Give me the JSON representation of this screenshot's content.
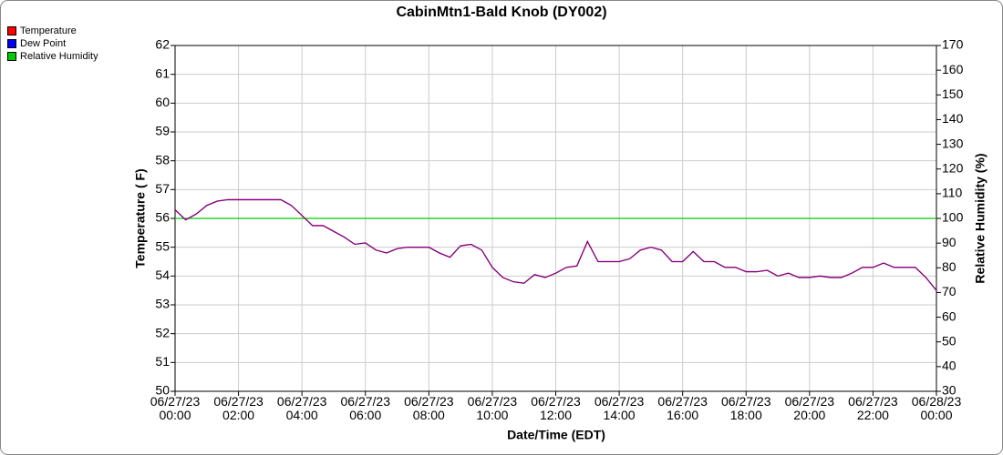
{
  "chart_data": {
    "type": "line",
    "title": "CabinMtn1-Bald Knob (DY002)",
    "x_label": "Date/Time (EDT)",
    "y_label": "Temperature ( F)",
    "y2_label": "Relative Humidity (%)",
    "x": [
      "06/27/23 00:00",
      "06/27/23 00:20",
      "06/27/23 00:40",
      "06/27/23 01:00",
      "06/27/23 01:20",
      "06/27/23 01:40",
      "06/27/23 02:00",
      "06/27/23 02:20",
      "06/27/23 02:40",
      "06/27/23 03:00",
      "06/27/23 03:20",
      "06/27/23 03:40",
      "06/27/23 04:00",
      "06/27/23 04:20",
      "06/27/23 04:40",
      "06/27/23 05:00",
      "06/27/23 05:20",
      "06/27/23 05:40",
      "06/27/23 06:00",
      "06/27/23 06:20",
      "06/27/23 06:40",
      "06/27/23 07:00",
      "06/27/23 07:20",
      "06/27/23 07:40",
      "06/27/23 08:00",
      "06/27/23 08:20",
      "06/27/23 08:40",
      "06/27/23 09:00",
      "06/27/23 09:20",
      "06/27/23 09:40",
      "06/27/23 10:00",
      "06/27/23 10:20",
      "06/27/23 10:40",
      "06/27/23 11:00",
      "06/27/23 11:20",
      "06/27/23 11:40",
      "06/27/23 12:00",
      "06/27/23 12:20",
      "06/27/23 12:40",
      "06/27/23 13:00",
      "06/27/23 13:20",
      "06/27/23 13:40",
      "06/27/23 14:00",
      "06/27/23 14:20",
      "06/27/23 14:40",
      "06/27/23 15:00",
      "06/27/23 15:20",
      "06/27/23 15:40",
      "06/27/23 16:00",
      "06/27/23 16:20",
      "06/27/23 16:40",
      "06/27/23 17:00",
      "06/27/23 17:20",
      "06/27/23 17:40",
      "06/27/23 18:00",
      "06/27/23 18:20",
      "06/27/23 18:40",
      "06/27/23 19:00",
      "06/27/23 19:20",
      "06/27/23 19:40",
      "06/27/23 20:00",
      "06/27/23 20:20",
      "06/27/23 20:40",
      "06/27/23 21:00",
      "06/27/23 21:20",
      "06/27/23 21:40",
      "06/27/23 22:00",
      "06/27/23 22:20",
      "06/27/23 22:40",
      "06/27/23 23:00",
      "06/27/23 23:20",
      "06/27/23 23:40",
      "06/28/23 00:00"
    ],
    "series": [
      {
        "name": "Temperature",
        "color": "#ff0000",
        "values": [
          56.3,
          55.95,
          56.15,
          56.45,
          56.6,
          56.65,
          56.65,
          56.65,
          56.65,
          56.65,
          56.65,
          56.45,
          56.1,
          55.75,
          55.75,
          55.55,
          55.35,
          55.1,
          55.15,
          54.9,
          54.8,
          54.95,
          55.0,
          55.0,
          55.0,
          54.8,
          54.65,
          55.05,
          55.1,
          54.9,
          54.3,
          53.95,
          53.8,
          53.75,
          54.05,
          53.95,
          54.1,
          54.3,
          54.35,
          55.2,
          54.5,
          54.5,
          54.5,
          54.6,
          54.9,
          55.0,
          54.9,
          54.5,
          54.5,
          54.85,
          54.5,
          54.5,
          54.3,
          54.3,
          54.15,
          54.15,
          54.2,
          54.0,
          54.1,
          53.95,
          53.95,
          54.0,
          53.95,
          53.95,
          54.1,
          54.3,
          54.3,
          54.45,
          54.3,
          54.3,
          54.3,
          53.95,
          53.5
        ]
      },
      {
        "name": "Dew Point",
        "color": "#0000ff",
        "values": [
          56.3,
          55.95,
          56.15,
          56.45,
          56.6,
          56.65,
          56.65,
          56.65,
          56.65,
          56.65,
          56.65,
          56.45,
          56.1,
          55.75,
          55.75,
          55.55,
          55.35,
          55.1,
          55.15,
          54.9,
          54.8,
          54.95,
          55.0,
          55.0,
          55.0,
          54.8,
          54.65,
          55.05,
          55.1,
          54.9,
          54.3,
          53.95,
          53.8,
          53.75,
          54.05,
          53.95,
          54.1,
          54.3,
          54.35,
          55.2,
          54.5,
          54.5,
          54.5,
          54.6,
          54.9,
          55.0,
          54.9,
          54.5,
          54.5,
          54.85,
          54.5,
          54.5,
          54.3,
          54.3,
          54.15,
          54.15,
          54.2,
          54.0,
          54.1,
          53.95,
          53.95,
          54.0,
          53.95,
          53.95,
          54.1,
          54.3,
          54.3,
          54.45,
          54.3,
          54.3,
          54.3,
          53.95,
          53.5
        ]
      },
      {
        "name": "Relative Humidity",
        "color": "#00cc00",
        "axis": "y2",
        "values": [
          100,
          100,
          100,
          100,
          100,
          100,
          100,
          100,
          100,
          100,
          100,
          100,
          100,
          100,
          100,
          100,
          100,
          100,
          100,
          100,
          100,
          100,
          100,
          100,
          100,
          100,
          100,
          100,
          100,
          100,
          100,
          100,
          100,
          100,
          100,
          100,
          100,
          100,
          100,
          100,
          100,
          100,
          100,
          100,
          100,
          100,
          100,
          100,
          100,
          100,
          100,
          100,
          100,
          100,
          100,
          100,
          100,
          100,
          100,
          100,
          100,
          100,
          100,
          100,
          100,
          100,
          100,
          100,
          100,
          100,
          100,
          100,
          100
        ]
      }
    ],
    "xlim": [
      "06/27/23 00:00",
      "06/28/23 00:00"
    ],
    "xticks": [
      "06/27/23 00:00",
      "06/27/23 02:00",
      "06/27/23 04:00",
      "06/27/23 06:00",
      "06/27/23 08:00",
      "06/27/23 10:00",
      "06/27/23 12:00",
      "06/27/23 14:00",
      "06/27/23 16:00",
      "06/27/23 18:00",
      "06/27/23 20:00",
      "06/27/23 22:00",
      "06/28/23 00:00"
    ],
    "ylim": [
      50,
      62
    ],
    "yticks": [
      50,
      51,
      52,
      53,
      54,
      55,
      56,
      57,
      58,
      59,
      60,
      61,
      62
    ],
    "y2lim": [
      30,
      170
    ],
    "y2ticks": [
      30,
      40,
      50,
      60,
      70,
      80,
      90,
      100,
      110,
      120,
      130,
      140,
      150,
      160,
      170
    ],
    "grid": true
  }
}
